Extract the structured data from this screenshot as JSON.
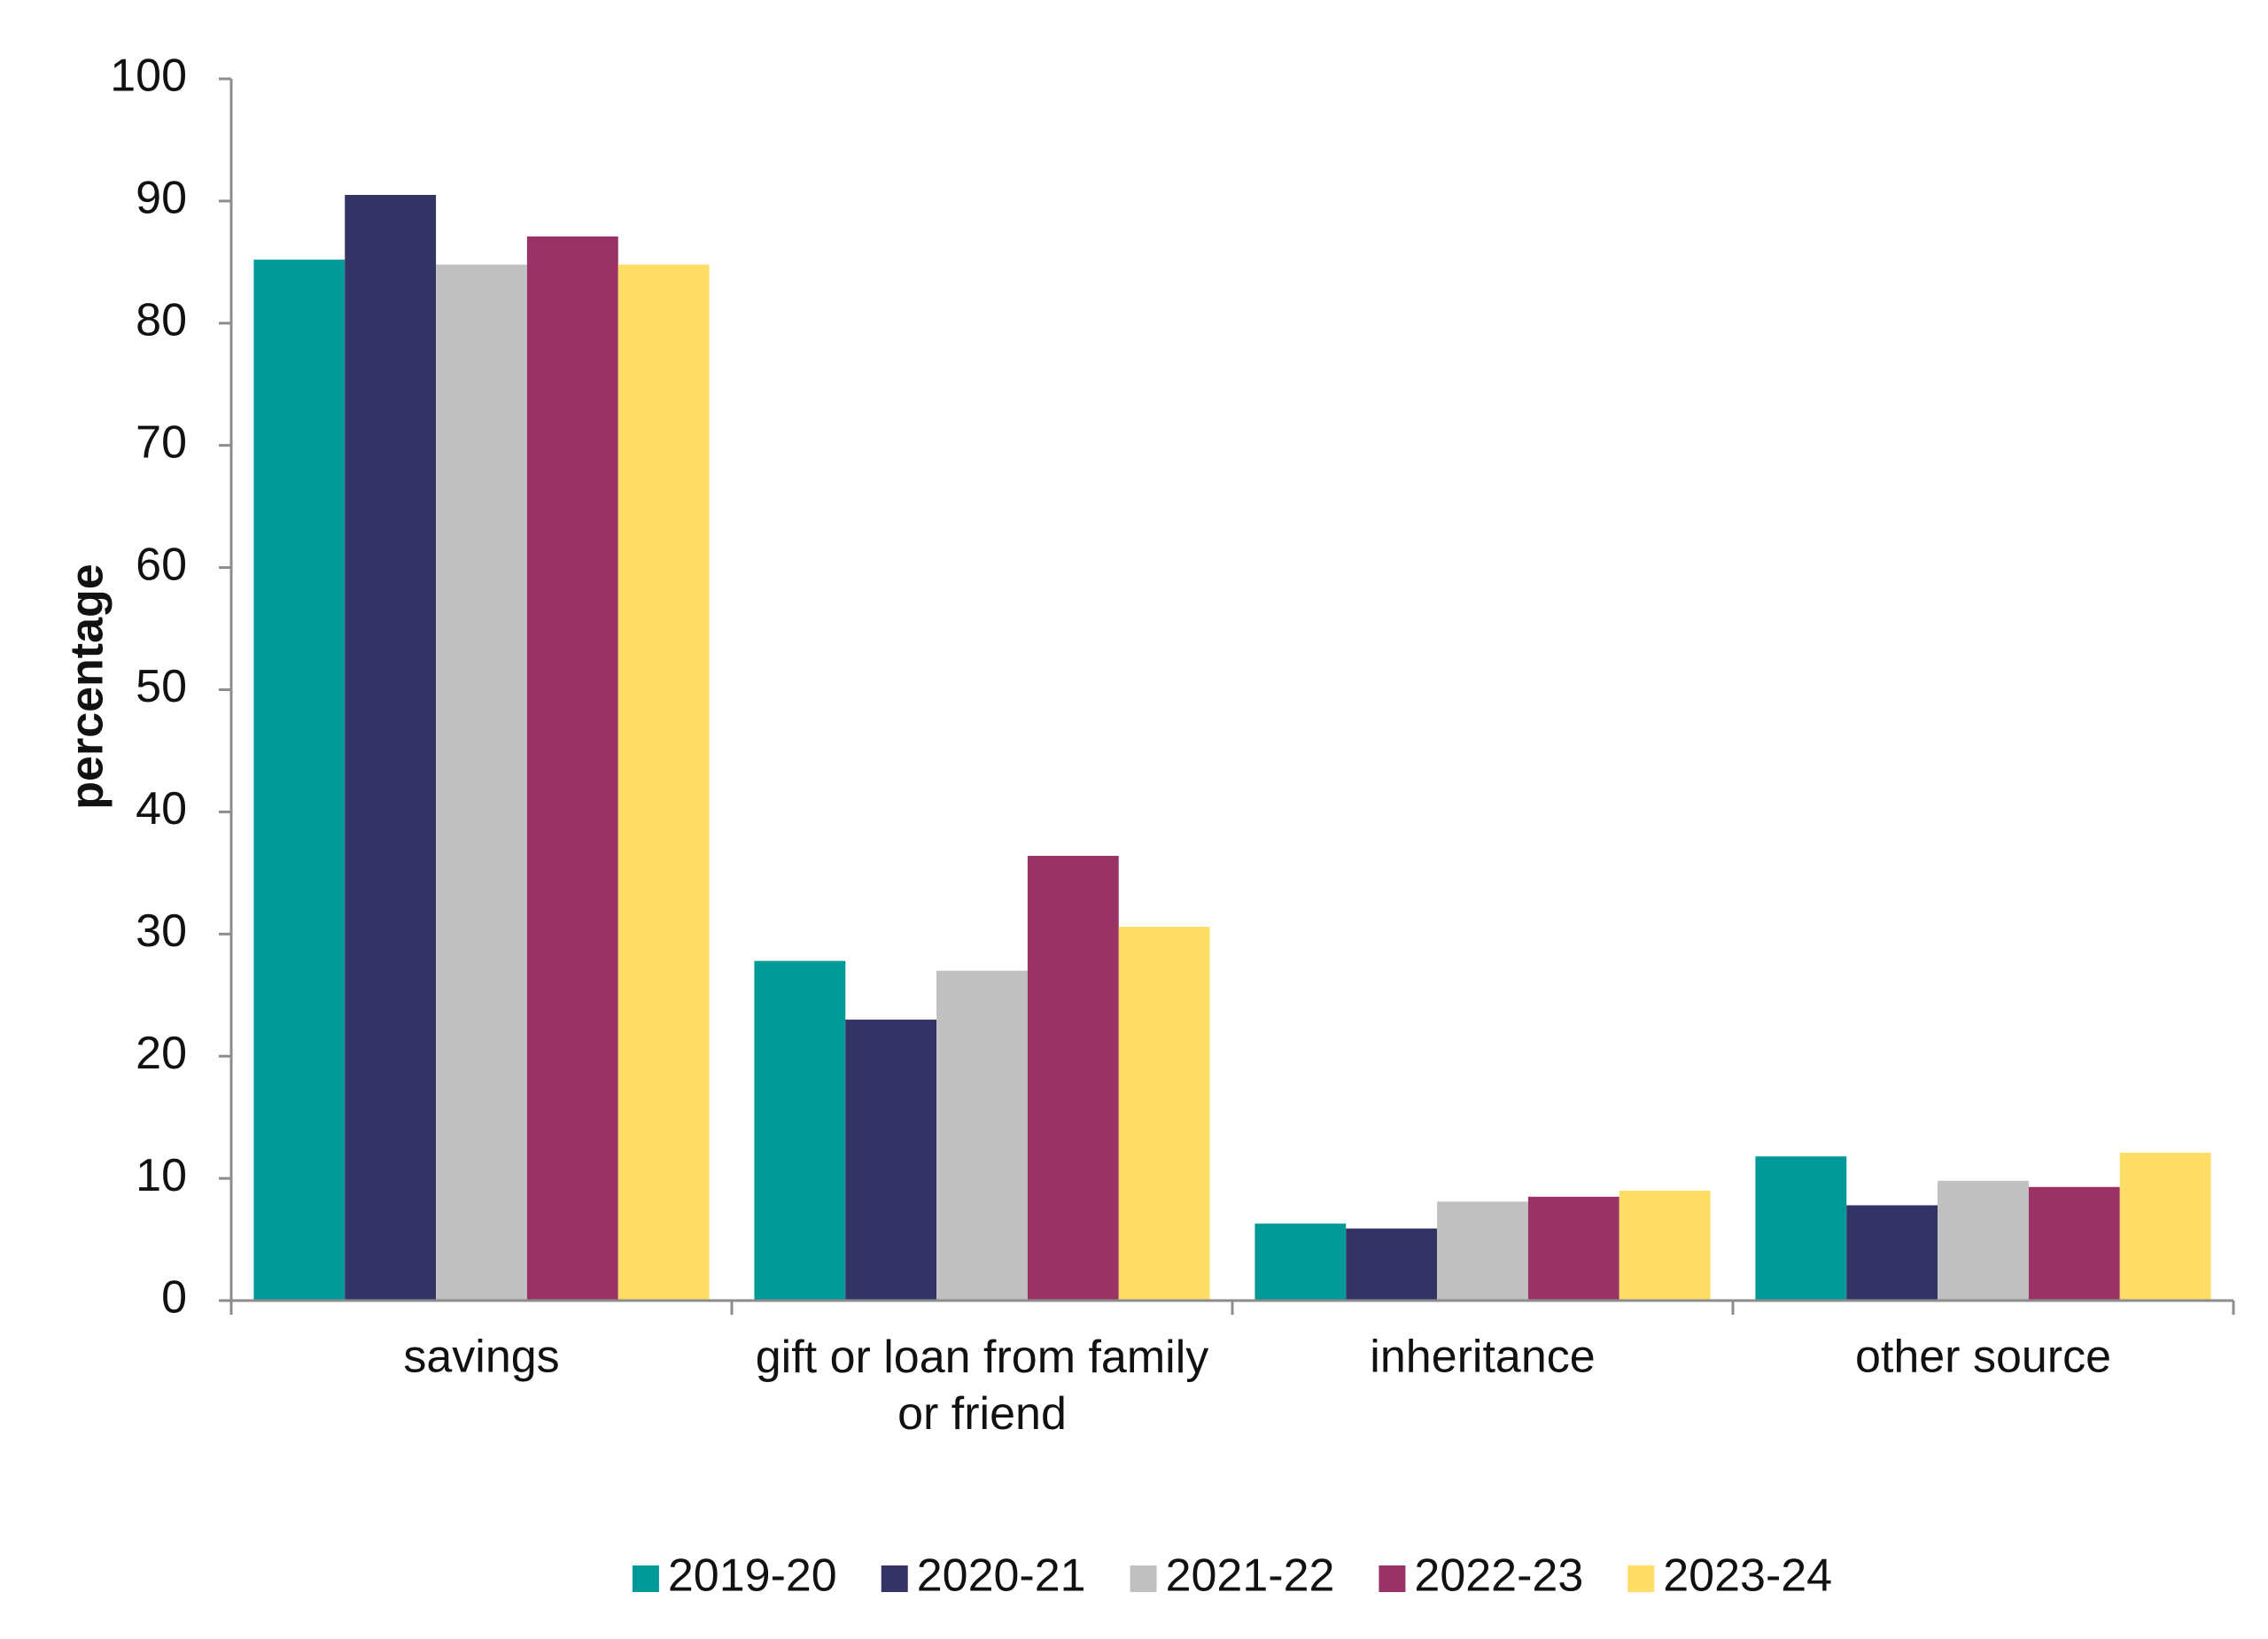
{
  "chart_data": {
    "type": "bar",
    "y_label": "percentage",
    "categories": [
      "savings",
      "gift or loan from family or friend",
      "inheritance",
      "other source"
    ],
    "series": [
      {
        "name": "2019-20",
        "color": "#009999",
        "values": [
          85.2,
          27.8,
          6.3,
          11.8
        ]
      },
      {
        "name": "2020-21",
        "color": "#333366",
        "values": [
          90.5,
          23.0,
          5.9,
          7.8
        ]
      },
      {
        "name": "2021-22",
        "color": "#c0c0c0",
        "values": [
          84.8,
          27.0,
          8.1,
          9.8
        ]
      },
      {
        "name": "2022-23",
        "color": "#993366",
        "values": [
          87.1,
          36.4,
          8.5,
          9.3
        ]
      },
      {
        "name": "2023-24",
        "color": "#ffdd66",
        "values": [
          84.8,
          30.6,
          9.0,
          12.1
        ]
      }
    ],
    "ylim": [
      0,
      100
    ],
    "yticks": [
      0,
      10,
      20,
      30,
      40,
      50,
      60,
      70,
      80,
      90,
      100
    ],
    "grid": false,
    "legend": "bottom"
  }
}
